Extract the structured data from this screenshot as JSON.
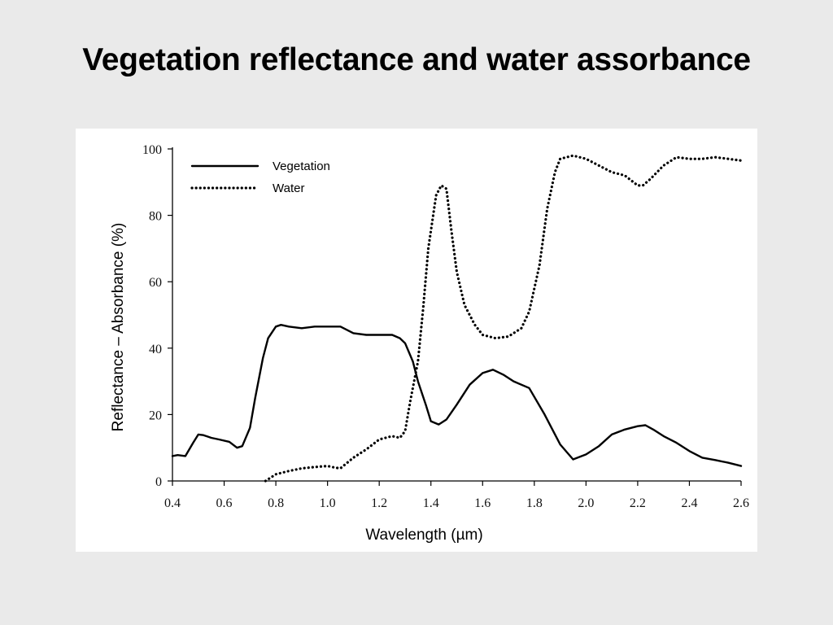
{
  "slide": {
    "title": "Vegetation reflectance and water assorbance"
  },
  "chart_data": {
    "type": "line",
    "title": "",
    "xlabel": "Wavelength (µm)",
    "ylabel": "Reflectance – Absorbance (%)",
    "xlim": [
      0.4,
      2.6
    ],
    "ylim": [
      0,
      100
    ],
    "xticks": [
      "0.4",
      "0.6",
      "0.8",
      "1.0",
      "1.2",
      "1.4",
      "1.6",
      "1.8",
      "2.0",
      "2.2",
      "2.4",
      "2.6"
    ],
    "yticks": [
      "0",
      "20",
      "40",
      "60",
      "80",
      "100"
    ],
    "grid": false,
    "legend_position": "top-left",
    "series": [
      {
        "name": "Vegetation",
        "style": "solid",
        "color": "#000000",
        "x": [
          0.4,
          0.42,
          0.45,
          0.48,
          0.5,
          0.52,
          0.55,
          0.58,
          0.62,
          0.65,
          0.67,
          0.7,
          0.72,
          0.75,
          0.77,
          0.8,
          0.82,
          0.85,
          0.9,
          0.95,
          1.0,
          1.05,
          1.1,
          1.15,
          1.2,
          1.25,
          1.28,
          1.3,
          1.33,
          1.35,
          1.38,
          1.4,
          1.43,
          1.46,
          1.5,
          1.55,
          1.6,
          1.64,
          1.68,
          1.72,
          1.78,
          1.84,
          1.9,
          1.95,
          2.0,
          2.05,
          2.1,
          2.15,
          2.2,
          2.23,
          2.26,
          2.3,
          2.35,
          2.4,
          2.45,
          2.5,
          2.55,
          2.6
        ],
        "y": [
          7.5,
          7.8,
          7.5,
          11.5,
          14,
          13.8,
          13,
          12.5,
          11.8,
          10,
          10.5,
          16,
          25,
          37,
          43,
          46.5,
          47,
          46.5,
          46,
          46.5,
          46.5,
          46.5,
          44.5,
          44,
          44,
          44,
          43,
          41.5,
          36,
          30,
          23,
          18,
          17,
          18.5,
          23,
          29,
          32.5,
          33.5,
          32,
          30,
          28,
          20,
          11,
          6.5,
          8,
          10.5,
          14,
          15.5,
          16.5,
          16.8,
          15.5,
          13.5,
          11.5,
          9,
          7,
          6.3,
          5.5,
          4.5
        ]
      },
      {
        "name": "Water",
        "style": "dotted",
        "color": "#000000",
        "x": [
          0.76,
          0.8,
          0.85,
          0.9,
          0.95,
          1.0,
          1.03,
          1.05,
          1.1,
          1.15,
          1.2,
          1.25,
          1.28,
          1.3,
          1.32,
          1.35,
          1.37,
          1.39,
          1.42,
          1.44,
          1.46,
          1.48,
          1.5,
          1.53,
          1.57,
          1.6,
          1.65,
          1.7,
          1.75,
          1.78,
          1.82,
          1.85,
          1.88,
          1.9,
          1.95,
          2.0,
          2.05,
          2.1,
          2.15,
          2.2,
          2.22,
          2.25,
          2.3,
          2.35,
          2.4,
          2.45,
          2.5,
          2.55,
          2.6
        ],
        "y": [
          0,
          2,
          3,
          3.8,
          4.2,
          4.5,
          4,
          3.8,
          7,
          9.5,
          12.5,
          13.5,
          13,
          15,
          24,
          36,
          52,
          70,
          86,
          89,
          88,
          75,
          63,
          53,
          47,
          44,
          43,
          43.5,
          46,
          51,
          65,
          82,
          93,
          97,
          98,
          97,
          95,
          93,
          92,
          89,
          89,
          91,
          95,
          97.5,
          97,
          97,
          97.5,
          97,
          96.5
        ]
      }
    ]
  }
}
